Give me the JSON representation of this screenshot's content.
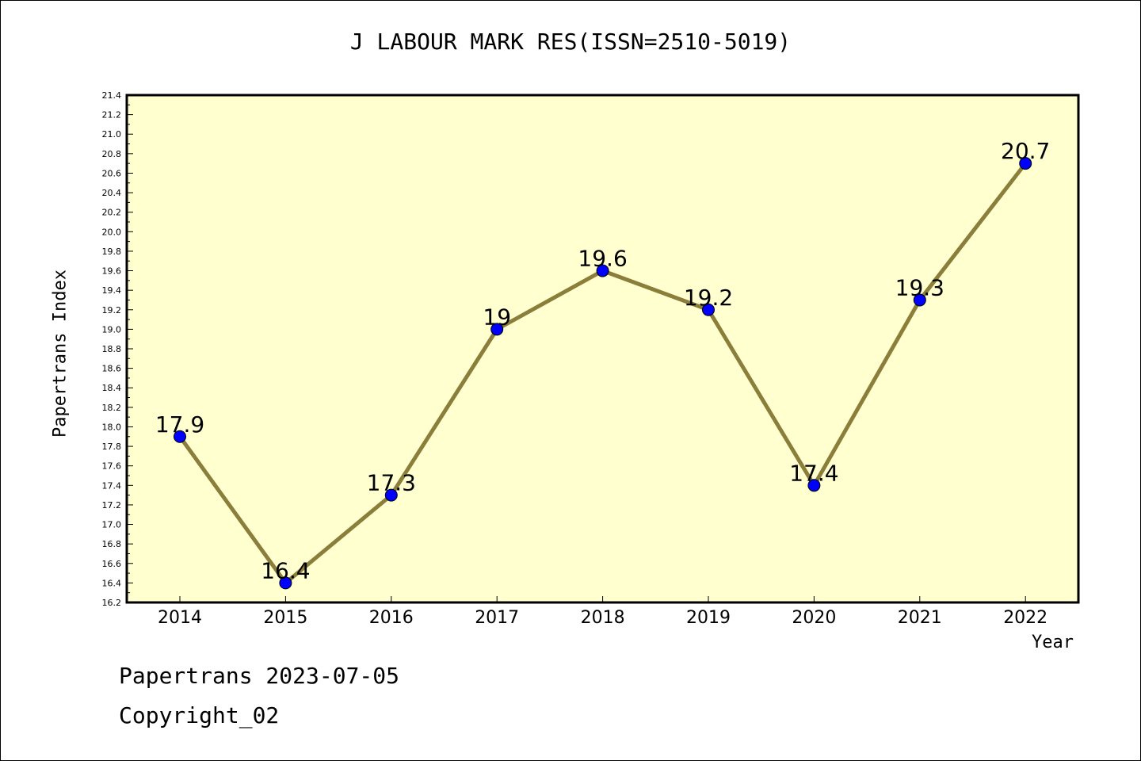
{
  "chart_data": {
    "type": "line",
    "title": "J LABOUR MARK RES(ISSN=2510-5019)",
    "xlabel": "Year",
    "ylabel": "Papertrans Index",
    "categories": [
      "2014",
      "2015",
      "2016",
      "2017",
      "2018",
      "2019",
      "2020",
      "2021",
      "2022"
    ],
    "series": [
      {
        "values": [
          17.9,
          16.4,
          17.3,
          19,
          19.6,
          19.2,
          17.4,
          19.3,
          20.7
        ],
        "labels": [
          "17.9",
          "16.4",
          "17.3",
          "19",
          "19.6",
          "19.2",
          "17.4",
          "19.3",
          "20.7"
        ]
      }
    ],
    "ylim": [
      16.2,
      21.4
    ],
    "yticks": [
      "16.2",
      "16.4",
      "16.6",
      "16.8",
      "17.0",
      "17.2",
      "17.4",
      "17.6",
      "17.8",
      "18.0",
      "18.2",
      "18.4",
      "18.6",
      "18.8",
      "19.0",
      "19.2",
      "19.4",
      "19.6",
      "19.8",
      "20.0",
      "20.2",
      "20.4",
      "20.6",
      "20.8",
      "21.0",
      "21.2",
      "21.4"
    ],
    "grid": false,
    "colors": {
      "plot_background": "#ffffd0",
      "line": "#8b7d3a",
      "marker": "#0000ff"
    }
  },
  "footer": {
    "line1": "Papertrans 2023-07-05",
    "line2": "Copyright_02"
  }
}
